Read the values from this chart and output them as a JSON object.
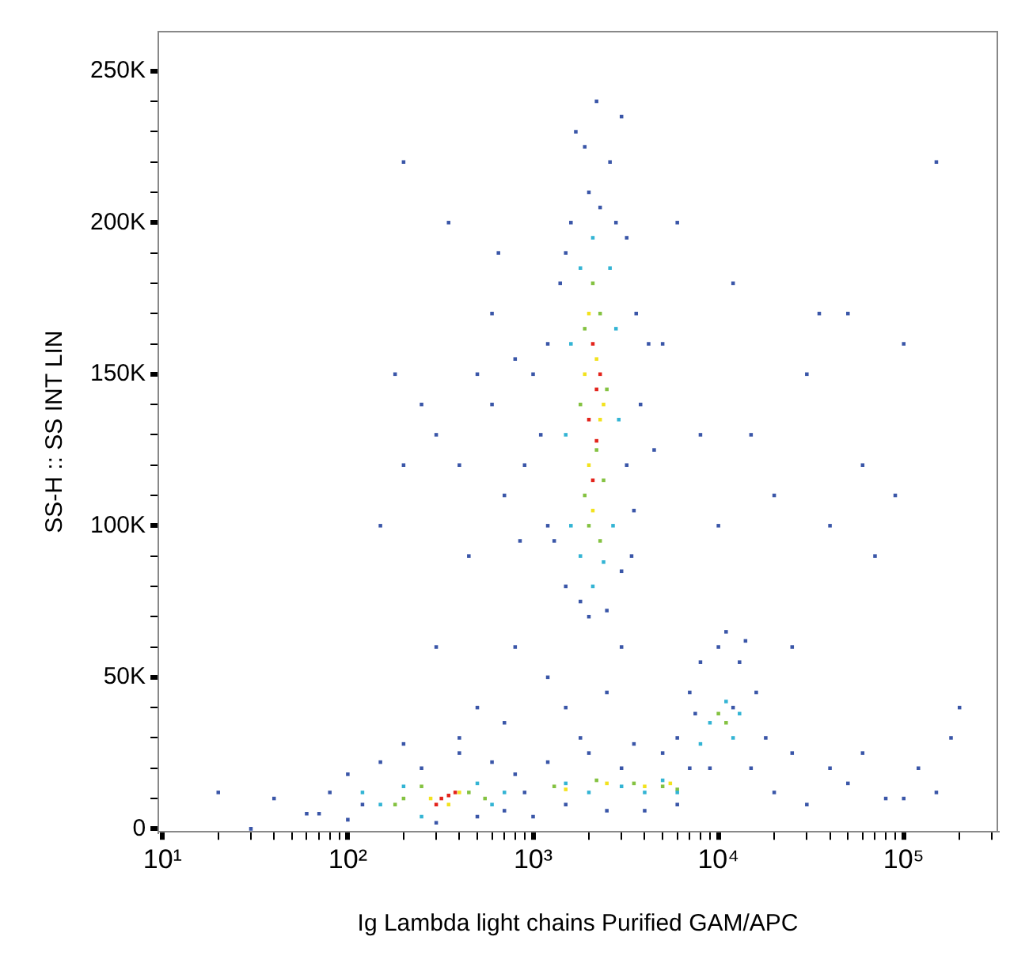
{
  "chart_data": {
    "type": "scatter",
    "xlabel": "Ig Lambda light chains Purified GAM/APC",
    "ylabel": "SS-H :: SS INT LIN",
    "log": "x",
    "grid": false,
    "legend": false,
    "marker": "square",
    "xlim": [
      9.5,
      320000
    ],
    "ylim": [
      -1000,
      263000
    ],
    "xticks": [
      {
        "value": 10,
        "label": "10¹"
      },
      {
        "value": 20,
        "label": null
      },
      {
        "value": 30,
        "label": null
      },
      {
        "value": 40,
        "label": null
      },
      {
        "value": 50,
        "label": null
      },
      {
        "value": 60,
        "label": null
      },
      {
        "value": 70,
        "label": null
      },
      {
        "value": 80,
        "label": null
      },
      {
        "value": 90,
        "label": null
      },
      {
        "value": 100,
        "label": "10²"
      },
      {
        "value": 200,
        "label": null
      },
      {
        "value": 300,
        "label": null
      },
      {
        "value": 400,
        "label": null
      },
      {
        "value": 500,
        "label": null
      },
      {
        "value": 600,
        "label": null
      },
      {
        "value": 700,
        "label": null
      },
      {
        "value": 800,
        "label": null
      },
      {
        "value": 900,
        "label": null
      },
      {
        "value": 1000,
        "label": "10³"
      },
      {
        "value": 2000,
        "label": null
      },
      {
        "value": 3000,
        "label": null
      },
      {
        "value": 4000,
        "label": null
      },
      {
        "value": 5000,
        "label": null
      },
      {
        "value": 6000,
        "label": null
      },
      {
        "value": 7000,
        "label": null
      },
      {
        "value": 8000,
        "label": null
      },
      {
        "value": 9000,
        "label": null
      },
      {
        "value": 10000,
        "label": "10⁴"
      },
      {
        "value": 20000,
        "label": null
      },
      {
        "value": 30000,
        "label": null
      },
      {
        "value": 40000,
        "label": null
      },
      {
        "value": 50000,
        "label": null
      },
      {
        "value": 60000,
        "label": null
      },
      {
        "value": 70000,
        "label": null
      },
      {
        "value": 80000,
        "label": null
      },
      {
        "value": 90000,
        "label": null
      },
      {
        "value": 100000,
        "label": "10⁵"
      },
      {
        "value": 200000,
        "label": null
      },
      {
        "value": 300000,
        "label": null
      }
    ],
    "yticks": [
      {
        "value": 0,
        "label": "0"
      },
      {
        "value": 10000,
        "label": null
      },
      {
        "value": 20000,
        "label": null
      },
      {
        "value": 30000,
        "label": null
      },
      {
        "value": 40000,
        "label": null
      },
      {
        "value": 50000,
        "label": "50K"
      },
      {
        "value": 60000,
        "label": null
      },
      {
        "value": 70000,
        "label": null
      },
      {
        "value": 80000,
        "label": null
      },
      {
        "value": 90000,
        "label": null
      },
      {
        "value": 100000,
        "label": "100K"
      },
      {
        "value": 110000,
        "label": null
      },
      {
        "value": 120000,
        "label": null
      },
      {
        "value": 130000,
        "label": null
      },
      {
        "value": 140000,
        "label": null
      },
      {
        "value": 150000,
        "label": "150K"
      },
      {
        "value": 160000,
        "label": null
      },
      {
        "value": 170000,
        "label": null
      },
      {
        "value": 180000,
        "label": null
      },
      {
        "value": 190000,
        "label": null
      },
      {
        "value": 200000,
        "label": "200K"
      },
      {
        "value": 210000,
        "label": null
      },
      {
        "value": 220000,
        "label": null
      },
      {
        "value": 230000,
        "label": null
      },
      {
        "value": 240000,
        "label": null
      },
      {
        "value": 250000,
        "label": "250K"
      }
    ],
    "series": [
      {
        "color": "#3a56a8",
        "x": [
          1500,
          2500,
          3000,
          1200,
          3500,
          1100,
          3800,
          1200,
          3600,
          1500,
          3200,
          2000,
          2600,
          1700,
          2200,
          3000,
          1300,
          2000,
          1800,
          3200,
          1000,
          4200,
          2800,
          1600,
          900,
          4500,
          1400,
          3400,
          2300,
          1900,
          500,
          400,
          300,
          600,
          700,
          250,
          200,
          450,
          350,
          200,
          650,
          800,
          300,
          500,
          400,
          700,
          1200,
          1500,
          2500,
          3000,
          600,
          150,
          180,
          800,
          850,
          8000,
          15000,
          30000,
          50000,
          20000,
          40000,
          100000,
          12000,
          60000,
          200000,
          150000,
          70000,
          25000,
          90000,
          120000,
          35000,
          10000,
          6000,
          5000,
          180000,
          60,
          80,
          100,
          150,
          200,
          100,
          300,
          500,
          700,
          800,
          400,
          250,
          120,
          40,
          70,
          600,
          30,
          20,
          900,
          1000,
          1200,
          1500,
          2000,
          2500,
          3000,
          4000,
          5000,
          6000,
          7000,
          1800,
          3500,
          6000,
          7000,
          8000,
          10000,
          13000,
          16000,
          18000,
          15000,
          9000,
          12000,
          7500,
          20000,
          30000,
          50000,
          80000,
          40000,
          100000,
          25000,
          150000,
          60000,
          11000,
          14000
        ],
        "values": [
          80000,
          72000,
          85000,
          100000,
          105000,
          130000,
          140000,
          160000,
          170000,
          190000,
          195000,
          210000,
          220000,
          230000,
          240000,
          235000,
          95000,
          70000,
          75000,
          120000,
          150000,
          160000,
          200000,
          200000,
          120000,
          125000,
          180000,
          90000,
          205000,
          225000,
          150000,
          120000,
          130000,
          170000,
          110000,
          140000,
          120000,
          90000,
          200000,
          220000,
          190000,
          60000,
          60000,
          40000,
          30000,
          35000,
          50000,
          40000,
          45000,
          60000,
          140000,
          100000,
          150000,
          155000,
          95000,
          130000,
          130000,
          150000,
          170000,
          110000,
          100000,
          160000,
          180000,
          120000,
          40000,
          220000,
          90000,
          60000,
          110000,
          20000,
          170000,
          100000,
          200000,
          160000,
          30000,
          5000,
          12000,
          18000,
          22000,
          28000,
          3000,
          2000,
          4000,
          6000,
          18000,
          25000,
          20000,
          8000,
          10000,
          5000,
          22000,
          0,
          12000,
          12000,
          4000,
          22000,
          8000,
          25000,
          6000,
          20000,
          6000,
          25000,
          8000,
          20000,
          30000,
          28000,
          30000,
          45000,
          55000,
          60000,
          55000,
          45000,
          30000,
          20000,
          20000,
          40000,
          38000,
          12000,
          8000,
          15000,
          10000,
          20000,
          10000,
          25000,
          12000,
          25000,
          65000,
          62000
        ]
      },
      {
        "color": "#33b4d4",
        "x": [
          1600,
          2700,
          1500,
          2900,
          1600,
          2800,
          1800,
          2600,
          2100,
          1800,
          2400,
          2100,
          150,
          200,
          500,
          600,
          250,
          700,
          120,
          1500,
          2000,
          3000,
          4000,
          5000,
          6000,
          9000,
          11000,
          12000,
          8000,
          13000
        ],
        "values": [
          100000,
          100000,
          130000,
          135000,
          160000,
          165000,
          185000,
          185000,
          195000,
          90000,
          88000,
          80000,
          8000,
          14000,
          15000,
          8000,
          4000,
          12000,
          12000,
          15000,
          12000,
          14000,
          12000,
          16000,
          12000,
          35000,
          42000,
          30000,
          28000,
          38000
        ]
      },
      {
        "color": "#84c241",
        "x": [
          1900,
          2400,
          1800,
          2500,
          1900,
          2300,
          2100,
          2000,
          2200,
          2300,
          200,
          250,
          450,
          550,
          180,
          1300,
          2200,
          3500,
          5000,
          6000,
          10000,
          11000
        ],
        "values": [
          110000,
          115000,
          140000,
          145000,
          165000,
          170000,
          180000,
          100000,
          125000,
          95000,
          10000,
          14000,
          12000,
          10000,
          8000,
          14000,
          16000,
          15000,
          14000,
          13000,
          38000,
          35000
        ]
      },
      {
        "color": "#f2e21e",
        "x": [
          2000,
          2300,
          1900,
          2200,
          2100,
          2000,
          2400,
          280,
          400,
          350,
          2500,
          4000,
          5500,
          1500
        ],
        "values": [
          120000,
          135000,
          150000,
          155000,
          105000,
          170000,
          140000,
          10000,
          12000,
          8000,
          15000,
          14000,
          15000,
          13000
        ]
      },
      {
        "color": "#e3231b",
        "x": [
          2100,
          2200,
          2000,
          2300,
          2100,
          320,
          350,
          300,
          380,
          2200
        ],
        "values": [
          115000,
          128000,
          135000,
          150000,
          160000,
          10000,
          11000,
          8000,
          12000,
          145000
        ]
      }
    ]
  }
}
